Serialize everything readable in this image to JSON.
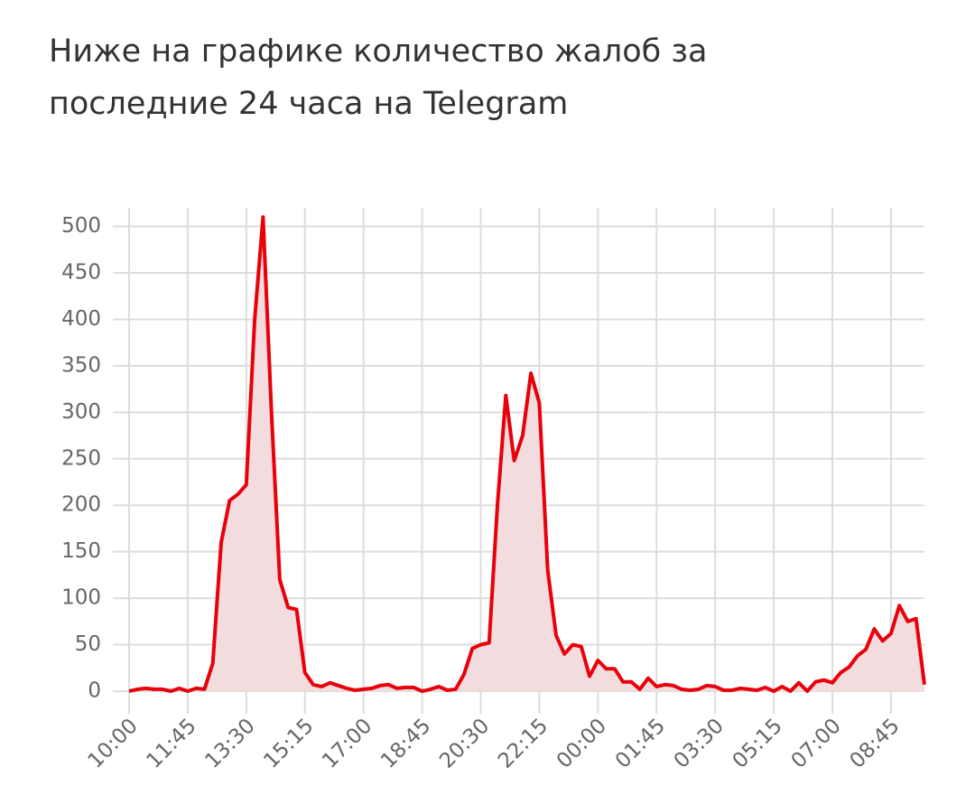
{
  "chart_data": {
    "type": "area-line",
    "title": "Ниже на графике количество жалоб за последние 24 часа на Telegram",
    "x": [
      0,
      15,
      30,
      45,
      60,
      75,
      90,
      105,
      120,
      135,
      150,
      165,
      180,
      195,
      210,
      225,
      240,
      255,
      270,
      285,
      300,
      315,
      330,
      345,
      360,
      375,
      390,
      405,
      420,
      435,
      450,
      465,
      480,
      495,
      510,
      525,
      540,
      555,
      570,
      585,
      600,
      615,
      630,
      645,
      660,
      675,
      690,
      705,
      720,
      735,
      750,
      765,
      780,
      795,
      810,
      825,
      840,
      855,
      870,
      885,
      900,
      915,
      930,
      945,
      960,
      975,
      990,
      1005,
      1020,
      1035,
      1050,
      1065,
      1080,
      1095,
      1110,
      1125,
      1140,
      1155,
      1170,
      1185,
      1200,
      1215,
      1230,
      1245,
      1260,
      1275,
      1290,
      1305,
      1320,
      1335,
      1350,
      1365,
      1380,
      1395,
      1410,
      1425
    ],
    "values": [
      0,
      2,
      3,
      2,
      2,
      0,
      3,
      0,
      3,
      2,
      30,
      160,
      205,
      212,
      222,
      400,
      510,
      300,
      120,
      90,
      88,
      20,
      7,
      5,
      9,
      6,
      3,
      1,
      2,
      3,
      6,
      7,
      3,
      4,
      4,
      0,
      2,
      5,
      1,
      2,
      18,
      46,
      50,
      52,
      200,
      318,
      248,
      275,
      342,
      310,
      130,
      60,
      40,
      50,
      48,
      16,
      33,
      24,
      24,
      10,
      10,
      2,
      14,
      5,
      7,
      6,
      2,
      1,
      2,
      6,
      5,
      1,
      1,
      3,
      2,
      1,
      4,
      0,
      5,
      0,
      9,
      0,
      10,
      12,
      9,
      20,
      26,
      38,
      45,
      67,
      54,
      62,
      92,
      75,
      78,
      7
    ],
    "color": "#e8000b",
    "area_color": "#f2dcdd",
    "xlim": [
      0,
      1425
    ],
    "ylim": [
      0,
      520
    ],
    "xticks": [
      {
        "value": 0,
        "label": "10:00"
      },
      {
        "value": 105,
        "label": "11:45"
      },
      {
        "value": 210,
        "label": "13:30"
      },
      {
        "value": 315,
        "label": "15:15"
      },
      {
        "value": 420,
        "label": "17:00"
      },
      {
        "value": 525,
        "label": "18:45"
      },
      {
        "value": 630,
        "label": "20:30"
      },
      {
        "value": 735,
        "label": "22:15"
      },
      {
        "value": 840,
        "label": "00:00"
      },
      {
        "value": 945,
        "label": "01:45"
      },
      {
        "value": 1050,
        "label": "03:30"
      },
      {
        "value": 1155,
        "label": "05:15"
      },
      {
        "value": 1260,
        "label": "07:00"
      },
      {
        "value": 1365,
        "label": "08:45"
      }
    ],
    "yticks": [
      0,
      50,
      100,
      150,
      200,
      250,
      300,
      350,
      400,
      450,
      500
    ],
    "grid": true
  }
}
